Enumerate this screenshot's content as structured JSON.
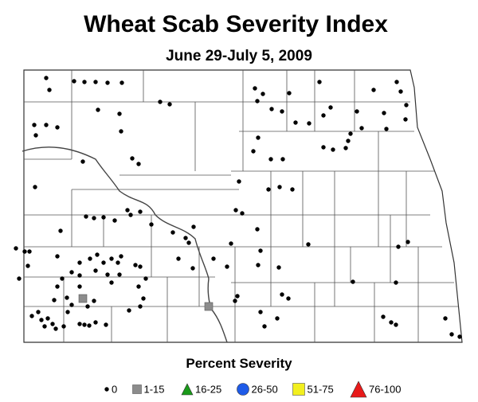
{
  "title": "Wheat Scab Severity Index",
  "subtitle": "June 29-July 5, 2009",
  "legend": {
    "title": "Percent Severity",
    "items": [
      {
        "label": "0",
        "color": "#000000"
      },
      {
        "label": "1-15",
        "color": "#8c8c8c"
      },
      {
        "label": "16-25",
        "color": "#1a9a1a"
      },
      {
        "label": "26-50",
        "color": "#1e5be8"
      },
      {
        "label": "51-75",
        "color": "#f2ef1e"
      },
      {
        "label": "76-100",
        "color": "#e81a1a"
      }
    ]
  }
}
